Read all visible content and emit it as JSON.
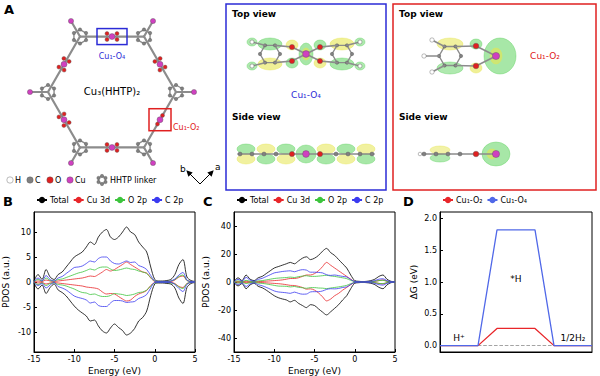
{
  "panel_a": {
    "panel_label": "A",
    "framework_label": "Cu₃(HHTP)₂",
    "sites": [
      {
        "label": "Cu₁-O₄",
        "color": "#2b2bd6"
      },
      {
        "label": "Cu₁-O₂",
        "color": "#e02020"
      }
    ],
    "views": [
      "Top view",
      "Side view"
    ],
    "lattice_axes": [
      "b",
      "a"
    ],
    "atoms": [
      {
        "label": "H",
        "color": "#ffffff"
      },
      {
        "label": "C",
        "color": "#808080"
      },
      {
        "label": "O",
        "color": "#e02020"
      },
      {
        "label": "Cu",
        "color": "#d040c0"
      }
    ],
    "linker_label": "HHTP linker"
  },
  "chart_data": [
    {
      "type": "line",
      "panel_label": "B",
      "xlabel": "Energy (eV)",
      "ylabel": "PDOS (a.u.)",
      "x": [
        -15,
        -14.5,
        -14,
        -13.5,
        -13,
        -12.5,
        -12,
        -11.5,
        -11,
        -10.5,
        -10,
        -9.5,
        -9,
        -8.5,
        -8,
        -7.5,
        -7,
        -6.5,
        -6,
        -5.5,
        -5,
        -4.5,
        -4,
        -3.5,
        -3,
        -2.5,
        -2,
        -1.5,
        -1,
        -0.5,
        0,
        0.5,
        1,
        1.5,
        2,
        2.5,
        3,
        3.5,
        4,
        4.5,
        5
      ],
      "xlim": [
        -15,
        5
      ],
      "xticks": [
        -15,
        -10,
        -5,
        0,
        5
      ],
      "ylim": [
        -14,
        14
      ],
      "yticks": [
        -10,
        -5,
        0,
        5,
        10
      ],
      "grid": false,
      "legend": "top",
      "series": [
        {
          "name": "Total",
          "color": "#000000",
          "values": [
            0.2,
            1.5,
            0.5,
            2.5,
            1.0,
            0.5,
            1.5,
            2.0,
            3.0,
            4.0,
            5.0,
            5.5,
            6.0,
            7.0,
            8.0,
            7.5,
            9.0,
            10.0,
            10.5,
            9.0,
            8.5,
            9.0,
            10.0,
            11.0,
            10.0,
            9.5,
            8.0,
            7.0,
            6.0,
            3.0,
            0.5,
            0.2,
            0.2,
            0.3,
            0.5,
            1.5,
            3.5,
            4.5,
            1.0,
            0.3,
            0.1
          ],
          "values_down": [
            -0.2,
            -1.4,
            -0.6,
            -2.3,
            -1.1,
            -0.4,
            -1.6,
            -2.1,
            -2.8,
            -3.8,
            -4.8,
            -5.6,
            -6.2,
            -6.8,
            -7.8,
            -7.6,
            -8.8,
            -9.8,
            -10.2,
            -9.2,
            -8.4,
            -9.1,
            -9.7,
            -10.6,
            -10.2,
            -9.3,
            -7.8,
            -7.1,
            -5.8,
            -2.7,
            -0.4,
            -0.2,
            -0.2,
            -0.3,
            -0.4,
            -1.2,
            -3.2,
            -4.3,
            -1.1,
            -0.3,
            -0.1
          ]
        },
        {
          "name": "Cu 3d",
          "color": "#e8262a",
          "values": [
            0,
            0.2,
            0.1,
            0.4,
            0.2,
            0.1,
            0.2,
            0.3,
            0.4,
            0.5,
            0.6,
            0.7,
            0.8,
            1.0,
            1.2,
            1.1,
            1.5,
            2.0,
            2.5,
            2.2,
            2.5,
            3.0,
            3.5,
            4.0,
            3.5,
            3.0,
            2.5,
            2.0,
            1.8,
            0.8,
            0.1,
            0,
            0,
            0.1,
            0.1,
            0.4,
            1.0,
            1.2,
            0.3,
            0.1,
            0
          ],
          "values_down": [
            0,
            -0.2,
            -0.1,
            -0.4,
            -0.2,
            -0.1,
            -0.2,
            -0.3,
            -0.4,
            -0.5,
            -0.6,
            -0.7,
            -0.8,
            -1.0,
            -1.1,
            -1.2,
            -1.4,
            -2.0,
            -2.4,
            -2.3,
            -2.4,
            -2.9,
            -3.4,
            -3.8,
            -3.6,
            -2.9,
            -2.4,
            -2.1,
            -1.7,
            -0.7,
            -0.1,
            0,
            0,
            -0.1,
            -0.1,
            -0.3,
            -0.9,
            -1.1,
            -0.3,
            -0.1,
            0
          ]
        },
        {
          "name": "O 2p",
          "color": "#3cc43c",
          "values": [
            0.1,
            0.5,
            0.2,
            0.8,
            0.3,
            0.2,
            0.5,
            0.6,
            0.9,
            1.2,
            1.5,
            1.8,
            2.0,
            2.3,
            2.6,
            2.4,
            2.8,
            3.0,
            3.0,
            2.6,
            2.3,
            2.4,
            2.6,
            2.8,
            2.6,
            2.5,
            2.2,
            2.0,
            1.7,
            0.9,
            0.2,
            0.1,
            0.1,
            0.1,
            0.2,
            0.5,
            1.1,
            1.4,
            0.3,
            0.1,
            0
          ],
          "values_down": [
            -0.1,
            -0.5,
            -0.2,
            -0.7,
            -0.3,
            -0.2,
            -0.5,
            -0.6,
            -0.8,
            -1.1,
            -1.4,
            -1.8,
            -2.1,
            -2.2,
            -2.5,
            -2.4,
            -2.7,
            -2.9,
            -2.9,
            -2.7,
            -2.3,
            -2.4,
            -2.5,
            -2.7,
            -2.6,
            -2.4,
            -2.1,
            -2.0,
            -1.6,
            -0.8,
            -0.2,
            -0.1,
            -0.1,
            -0.1,
            -0.2,
            -0.4,
            -1.0,
            -1.3,
            -0.3,
            -0.1,
            0
          ]
        },
        {
          "name": "C 2p",
          "color": "#3a3af0",
          "values": [
            0.1,
            0.8,
            0.2,
            1.3,
            0.5,
            0.2,
            0.8,
            1.1,
            1.7,
            2.3,
            2.9,
            3.0,
            3.2,
            3.7,
            4.2,
            4.0,
            4.7,
            5.0,
            5.0,
            4.2,
            3.7,
            3.6,
            3.9,
            4.2,
            3.9,
            4.0,
            3.3,
            3.0,
            2.5,
            1.3,
            0.2,
            0.1,
            0.1,
            0.1,
            0.2,
            0.6,
            1.4,
            1.9,
            0.4,
            0.1,
            0.1
          ],
          "values_down": [
            -0.1,
            -0.7,
            -0.3,
            -1.2,
            -0.6,
            -0.1,
            -0.9,
            -1.2,
            -1.6,
            -2.2,
            -2.8,
            -3.1,
            -3.3,
            -3.6,
            -4.2,
            -4.0,
            -4.7,
            -4.9,
            -4.9,
            -4.2,
            -3.7,
            -3.7,
            -3.8,
            -4.1,
            -4.0,
            -3.9,
            -3.3,
            -3.0,
            -2.5,
            -1.2,
            -0.1,
            -0.1,
            -0.1,
            -0.1,
            -0.1,
            -0.5,
            -1.3,
            -1.9,
            -0.5,
            -0.1,
            -0.1
          ]
        }
      ]
    },
    {
      "type": "line",
      "panel_label": "C",
      "xlabel": "Energy (eV)",
      "ylabel": "PDOS (a.u.)",
      "x": [
        -15,
        -14.5,
        -14,
        -13.5,
        -13,
        -12.5,
        -12,
        -11.5,
        -11,
        -10.5,
        -10,
        -9.5,
        -9,
        -8.5,
        -8,
        -7.5,
        -7,
        -6.5,
        -6,
        -5.5,
        -5,
        -4.5,
        -4,
        -3.5,
        -3,
        -2.5,
        -2,
        -1.5,
        -1,
        -0.5,
        0,
        0.5,
        1,
        1.5,
        2,
        2.5,
        3,
        3.5,
        4,
        4.5,
        5
      ],
      "xlim": [
        -15,
        5
      ],
      "xticks": [
        -15,
        -10,
        -5,
        0,
        5
      ],
      "ylim": [
        -50,
        50
      ],
      "yticks": [
        -40,
        -20,
        0,
        20,
        40
      ],
      "grid": false,
      "legend": "top",
      "series": [
        {
          "name": "Total",
          "color": "#000000",
          "values": [
            0.5,
            3,
            1,
            5,
            2,
            1,
            3,
            4,
            6,
            8,
            10,
            11,
            12,
            13,
            14,
            13,
            15,
            17,
            18,
            16,
            17,
            19,
            22,
            24,
            21,
            19,
            16,
            13,
            10,
            5,
            1,
            0.5,
            0.3,
            0.5,
            1,
            2,
            4,
            5,
            2,
            0.5,
            0.2
          ],
          "values_down": [
            -0.5,
            -2.8,
            -1.1,
            -4.8,
            -2.1,
            -0.9,
            -3.1,
            -4.1,
            -5.8,
            -7.8,
            -9.8,
            -11.2,
            -12.1,
            -12.8,
            -14.2,
            -13.1,
            -15.2,
            -16.8,
            -18.3,
            -16.2,
            -16.8,
            -19.2,
            -21.5,
            -23.5,
            -21.3,
            -18.8,
            -16.2,
            -12.8,
            -9.8,
            -4.8,
            -0.9,
            -0.5,
            -0.3,
            -0.5,
            -0.9,
            -1.9,
            -3.8,
            -4.8,
            -2.1,
            -0.5,
            -0.2
          ]
        },
        {
          "name": "Cu 3d",
          "color": "#e8262a",
          "values": [
            0,
            0.3,
            0.1,
            0.5,
            0.2,
            0.1,
            0.3,
            0.4,
            0.6,
            0.8,
            1,
            1.2,
            1.5,
            2,
            2.5,
            2.5,
            3,
            4,
            5,
            5,
            6,
            8,
            11,
            14,
            12,
            10,
            8,
            6,
            4,
            2,
            0.3,
            0.1,
            0,
            0.1,
            0.2,
            0.5,
            1,
            1.5,
            0.5,
            0.1,
            0
          ],
          "values_down": [
            0,
            -0.3,
            -0.1,
            -0.5,
            -0.2,
            -0.1,
            -0.3,
            -0.4,
            -0.6,
            -0.8,
            -1,
            -1.2,
            -1.5,
            -1.9,
            -2.4,
            -2.5,
            -3.1,
            -3.9,
            -5.1,
            -4.9,
            -5.8,
            -7.8,
            -10.6,
            -13.5,
            -12.2,
            -9.8,
            -8.1,
            -5.8,
            -3.9,
            -1.9,
            -0.3,
            -0.1,
            0,
            -0.1,
            -0.2,
            -0.5,
            -1,
            -1.4,
            -0.5,
            -0.1,
            0
          ]
        },
        {
          "name": "O 2p",
          "color": "#3cc43c",
          "values": [
            0.2,
            0.8,
            0.3,
            1.2,
            0.5,
            0.3,
            0.8,
            1,
            1.5,
            2,
            2.5,
            2.8,
            3,
            3.2,
            3.5,
            3.2,
            3.8,
            4.2,
            4.5,
            4,
            4,
            4.2,
            4.5,
            4.8,
            4.3,
            4,
            3.5,
            3,
            2.4,
            1.2,
            0.3,
            0.1,
            0.1,
            0.1,
            0.3,
            0.5,
            1,
            1.2,
            0.5,
            0.1,
            0
          ],
          "values_down": [
            -0.2,
            -0.8,
            -0.3,
            -1.1,
            -0.5,
            -0.3,
            -0.8,
            -1,
            -1.4,
            -1.9,
            -2.4,
            -2.9,
            -3,
            -3.1,
            -3.5,
            -3.2,
            -3.8,
            -4.1,
            -4.5,
            -4,
            -4,
            -4.3,
            -4.4,
            -4.7,
            -4.3,
            -3.9,
            -3.5,
            -3,
            -2.4,
            -1.2,
            -0.3,
            -0.1,
            -0.1,
            -0.1,
            -0.3,
            -0.5,
            -1,
            -1.1,
            -0.5,
            -0.1,
            0
          ]
        },
        {
          "name": "C 2p",
          "color": "#3a3af0",
          "values": [
            0.3,
            1.9,
            0.6,
            3.3,
            1.3,
            0.6,
            1.9,
            2.6,
            3.9,
            5.2,
            6.5,
            7,
            7.5,
            7.8,
            8,
            7.3,
            8.2,
            8.8,
            8.5,
            7,
            7,
            6.8,
            6.5,
            5.2,
            4.7,
            5,
            4.5,
            4,
            3.6,
            1.8,
            0.4,
            0.3,
            0.2,
            0.3,
            0.5,
            1,
            2,
            2.3,
            1,
            0.3,
            0.2
          ],
          "values_down": [
            -0.3,
            -1.8,
            -0.6,
            -3.2,
            -1.3,
            -0.6,
            -1.9,
            -2.7,
            -3.8,
            -5.1,
            -6.4,
            -7.1,
            -7.4,
            -7.7,
            -8.1,
            -7.2,
            -8.1,
            -8.7,
            -8.6,
            -7.1,
            -6.9,
            -6.9,
            -6.4,
            -5.3,
            -4.8,
            -4.9,
            -4.6,
            -3.9,
            -3.5,
            -1.7,
            -0.4,
            -0.3,
            -0.2,
            -0.3,
            -0.5,
            -1,
            -1.9,
            -2.2,
            -1,
            -0.3,
            -0.2
          ]
        }
      ]
    },
    {
      "type": "step",
      "panel_label": "D",
      "ylabel": "ΔG (eV)",
      "categories": [
        "H⁺",
        "*H",
        "1/2H₂"
      ],
      "ylim": [
        -0.1,
        2.1
      ],
      "yticks": [
        {
          "value": 0,
          "label": "0.0"
        },
        {
          "value": 0.5,
          "label": "0.5"
        },
        {
          "value": 1,
          "label": "1.0"
        },
        {
          "value": 1.5,
          "label": "1.5"
        },
        {
          "value": 2,
          "label": "2.0"
        }
      ],
      "grid": false,
      "legend": "top",
      "tick_labels": "y",
      "series": [
        {
          "name": "Cu₁-O₂",
          "color": "#e8262a",
          "values": [
            0,
            0.27,
            0
          ]
        },
        {
          "name": "Cu₁-O₄",
          "color": "#5068e8",
          "values": [
            0,
            1.82,
            0
          ]
        }
      ]
    }
  ]
}
